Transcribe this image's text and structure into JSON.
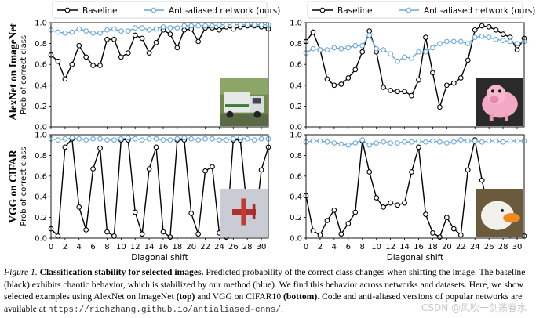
{
  "figure_number": "Figure 1.",
  "caption_title": "Classification stability for selected images.",
  "caption_text1": "Predicted probability of the correct class changes when shifting the image. The baseline (black) exhibits chaotic behavior, which is stabilized by our method (blue). We find this behavior across networks and datasets. Here, we show selected examples using AlexNet on ImageNet ",
  "caption_top": "(top)",
  "caption_text2": " and VGG on CIFAR10 ",
  "caption_bottom": "(bottom)",
  "caption_text3": ". Code and anti-aliased versions of popular networks are available at ",
  "caption_url": "https://richzhang.github.io/antialiased-cnns/",
  "caption_end": ".",
  "watermark": "CSDN @风吹一剑荡春水",
  "row_labels": [
    "AlexNet on ImageNet",
    "VGG on CIFAR"
  ],
  "colors": {
    "baseline": "#000000",
    "antialiased": "#6aa9dc"
  },
  "chart_data": [
    {
      "type": "line",
      "position": "top-left",
      "ylabel": "Prob of correct class",
      "xlabel": "",
      "legend": [
        "Baseline",
        "Anti-aliased network (ours)"
      ],
      "ylim": [
        0,
        1
      ],
      "xlim": [
        0,
        31
      ],
      "x": [
        0,
        1,
        2,
        3,
        4,
        5,
        6,
        7,
        8,
        9,
        10,
        11,
        12,
        13,
        14,
        15,
        16,
        17,
        18,
        19,
        20,
        21,
        22,
        23,
        24,
        25,
        26,
        27,
        28,
        29,
        30,
        31
      ],
      "yticks": [
        "0.0",
        "0.2",
        "0.4",
        "0.6",
        "0.8",
        "1.0"
      ],
      "xticks": [],
      "thumbnail": "garbage truck",
      "series": [
        {
          "name": "Baseline",
          "values": [
            0.69,
            0.63,
            0.46,
            0.6,
            0.78,
            0.67,
            0.59,
            0.59,
            0.84,
            0.84,
            0.67,
            0.71,
            0.88,
            0.85,
            0.71,
            0.81,
            0.93,
            0.89,
            0.76,
            0.93,
            0.94,
            0.82,
            0.95,
            0.95,
            0.93,
            0.96,
            0.94,
            0.96,
            0.97,
            0.97,
            0.96,
            0.94
          ]
        },
        {
          "name": "Anti-aliased network (ours)",
          "values": [
            0.93,
            0.91,
            0.9,
            0.91,
            0.94,
            0.92,
            0.9,
            0.9,
            0.93,
            0.94,
            0.92,
            0.92,
            0.95,
            0.95,
            0.93,
            0.94,
            0.96,
            0.95,
            0.95,
            0.97,
            0.97,
            0.97,
            0.97,
            0.97,
            0.98,
            0.98,
            0.98,
            0.98,
            0.98,
            0.98,
            0.98,
            0.98
          ]
        }
      ]
    },
    {
      "type": "line",
      "position": "top-right",
      "ylabel": "",
      "xlabel": "",
      "legend": [
        "Baseline",
        "Anti-aliased network (ours)"
      ],
      "ylim": [
        0,
        1
      ],
      "xlim": [
        0,
        31
      ],
      "x": [
        0,
        1,
        2,
        3,
        4,
        5,
        6,
        7,
        8,
        9,
        10,
        11,
        12,
        13,
        14,
        15,
        16,
        17,
        18,
        19,
        20,
        21,
        22,
        23,
        24,
        25,
        26,
        27,
        28,
        29,
        30,
        31
      ],
      "yticks": [
        "0.0",
        "0.2",
        "0.4",
        "0.6",
        "0.8",
        "1.0"
      ],
      "xticks": [],
      "thumbnail": "pink pig toy",
      "series": [
        {
          "name": "Baseline",
          "values": [
            0.82,
            0.91,
            0.74,
            0.46,
            0.4,
            0.41,
            0.47,
            0.55,
            0.72,
            0.92,
            0.72,
            0.38,
            0.35,
            0.34,
            0.34,
            0.3,
            0.45,
            0.86,
            0.52,
            0.19,
            0.4,
            0.42,
            0.47,
            0.64,
            0.93,
            0.97,
            0.96,
            0.93,
            0.89,
            0.86,
            0.74,
            0.85
          ]
        },
        {
          "name": "Anti-aliased network (ours)",
          "values": [
            0.71,
            0.75,
            0.74,
            0.74,
            0.76,
            0.75,
            0.76,
            0.78,
            0.78,
            0.88,
            0.75,
            0.74,
            0.7,
            0.63,
            0.67,
            0.66,
            0.72,
            0.72,
            0.76,
            0.8,
            0.82,
            0.82,
            0.82,
            0.8,
            0.86,
            0.87,
            0.86,
            0.84,
            0.83,
            0.82,
            0.8,
            0.82
          ]
        }
      ]
    },
    {
      "type": "line",
      "position": "bottom-left",
      "ylabel": "Prob of correct class",
      "xlabel": "Diagonal shift",
      "ylim": [
        0,
        1
      ],
      "xlim": [
        0,
        31
      ],
      "x": [
        0,
        1,
        2,
        3,
        4,
        5,
        6,
        7,
        8,
        9,
        10,
        11,
        12,
        13,
        14,
        15,
        16,
        17,
        18,
        19,
        20,
        21,
        22,
        23,
        24,
        25,
        26,
        27,
        28,
        29,
        30,
        31
      ],
      "yticks": [
        "0.0",
        "0.2",
        "0.4",
        "0.6",
        "0.8",
        "1.0"
      ],
      "xticks": [
        "0",
        "2",
        "4",
        "6",
        "8",
        "10",
        "12",
        "14",
        "16",
        "18",
        "20",
        "22",
        "24",
        "26",
        "28",
        "30"
      ],
      "thumbnail": "red airplane",
      "series": [
        {
          "name": "Baseline",
          "values": [
            0.09,
            0.02,
            0.88,
            0.96,
            0.3,
            0.08,
            0.67,
            0.87,
            0.06,
            0.02,
            0.95,
            0.95,
            0.25,
            0.04,
            0.67,
            0.88,
            0.06,
            0.01,
            0.95,
            0.95,
            0.24,
            0.04,
            0.65,
            0.69,
            0.05,
            0.01,
            0.95,
            0.95,
            0.25,
            0.05,
            0.66,
            0.88
          ]
        },
        {
          "name": "Anti-aliased network (ours)",
          "values": [
            0.96,
            0.95,
            0.96,
            0.97,
            0.96,
            0.95,
            0.96,
            0.96,
            0.95,
            0.95,
            0.96,
            0.97,
            0.96,
            0.95,
            0.96,
            0.96,
            0.95,
            0.95,
            0.96,
            0.97,
            0.96,
            0.95,
            0.96,
            0.96,
            0.95,
            0.95,
            0.96,
            0.97,
            0.96,
            0.95,
            0.96,
            0.96
          ]
        }
      ]
    },
    {
      "type": "line",
      "position": "bottom-right",
      "ylabel": "",
      "xlabel": "Diagonal shift",
      "ylim": [
        0,
        1
      ],
      "xlim": [
        0,
        31
      ],
      "x": [
        0,
        1,
        2,
        3,
        4,
        5,
        6,
        7,
        8,
        9,
        10,
        11,
        12,
        13,
        14,
        15,
        16,
        17,
        18,
        19,
        20,
        21,
        22,
        23,
        24,
        25,
        26,
        27,
        28,
        29,
        30,
        31
      ],
      "yticks": [
        "0.0",
        "0.2",
        "0.4",
        "0.6",
        "0.8",
        "1.0"
      ],
      "xticks": [
        "0",
        "2",
        "4",
        "6",
        "8",
        "10",
        "12",
        "14",
        "16",
        "18",
        "20",
        "22",
        "24",
        "26",
        "28",
        "30"
      ],
      "thumbnail": "white duck",
      "series": [
        {
          "name": "Baseline",
          "values": [
            0.41,
            0.07,
            0.03,
            0.17,
            0.27,
            0.04,
            0.14,
            0.25,
            0.94,
            0.64,
            0.39,
            0.3,
            0.34,
            0.32,
            0.34,
            0.64,
            0.88,
            0.23,
            0.05,
            0.01,
            0.2,
            0.09,
            0.03,
            0.66,
            0.95,
            0.56,
            0.25,
            0.12,
            0.07,
            0.03,
            0.03,
            0.02
          ]
        },
        {
          "name": "Anti-aliased network (ours)",
          "values": [
            0.93,
            0.94,
            0.94,
            0.93,
            0.92,
            0.91,
            0.9,
            0.92,
            0.95,
            0.9,
            0.92,
            0.93,
            0.92,
            0.92,
            0.93,
            0.93,
            0.94,
            0.93,
            0.94,
            0.93,
            0.92,
            0.93,
            0.95,
            0.94,
            0.94,
            0.93,
            0.94,
            0.94,
            0.93,
            0.94,
            0.94,
            0.94
          ]
        }
      ]
    }
  ]
}
